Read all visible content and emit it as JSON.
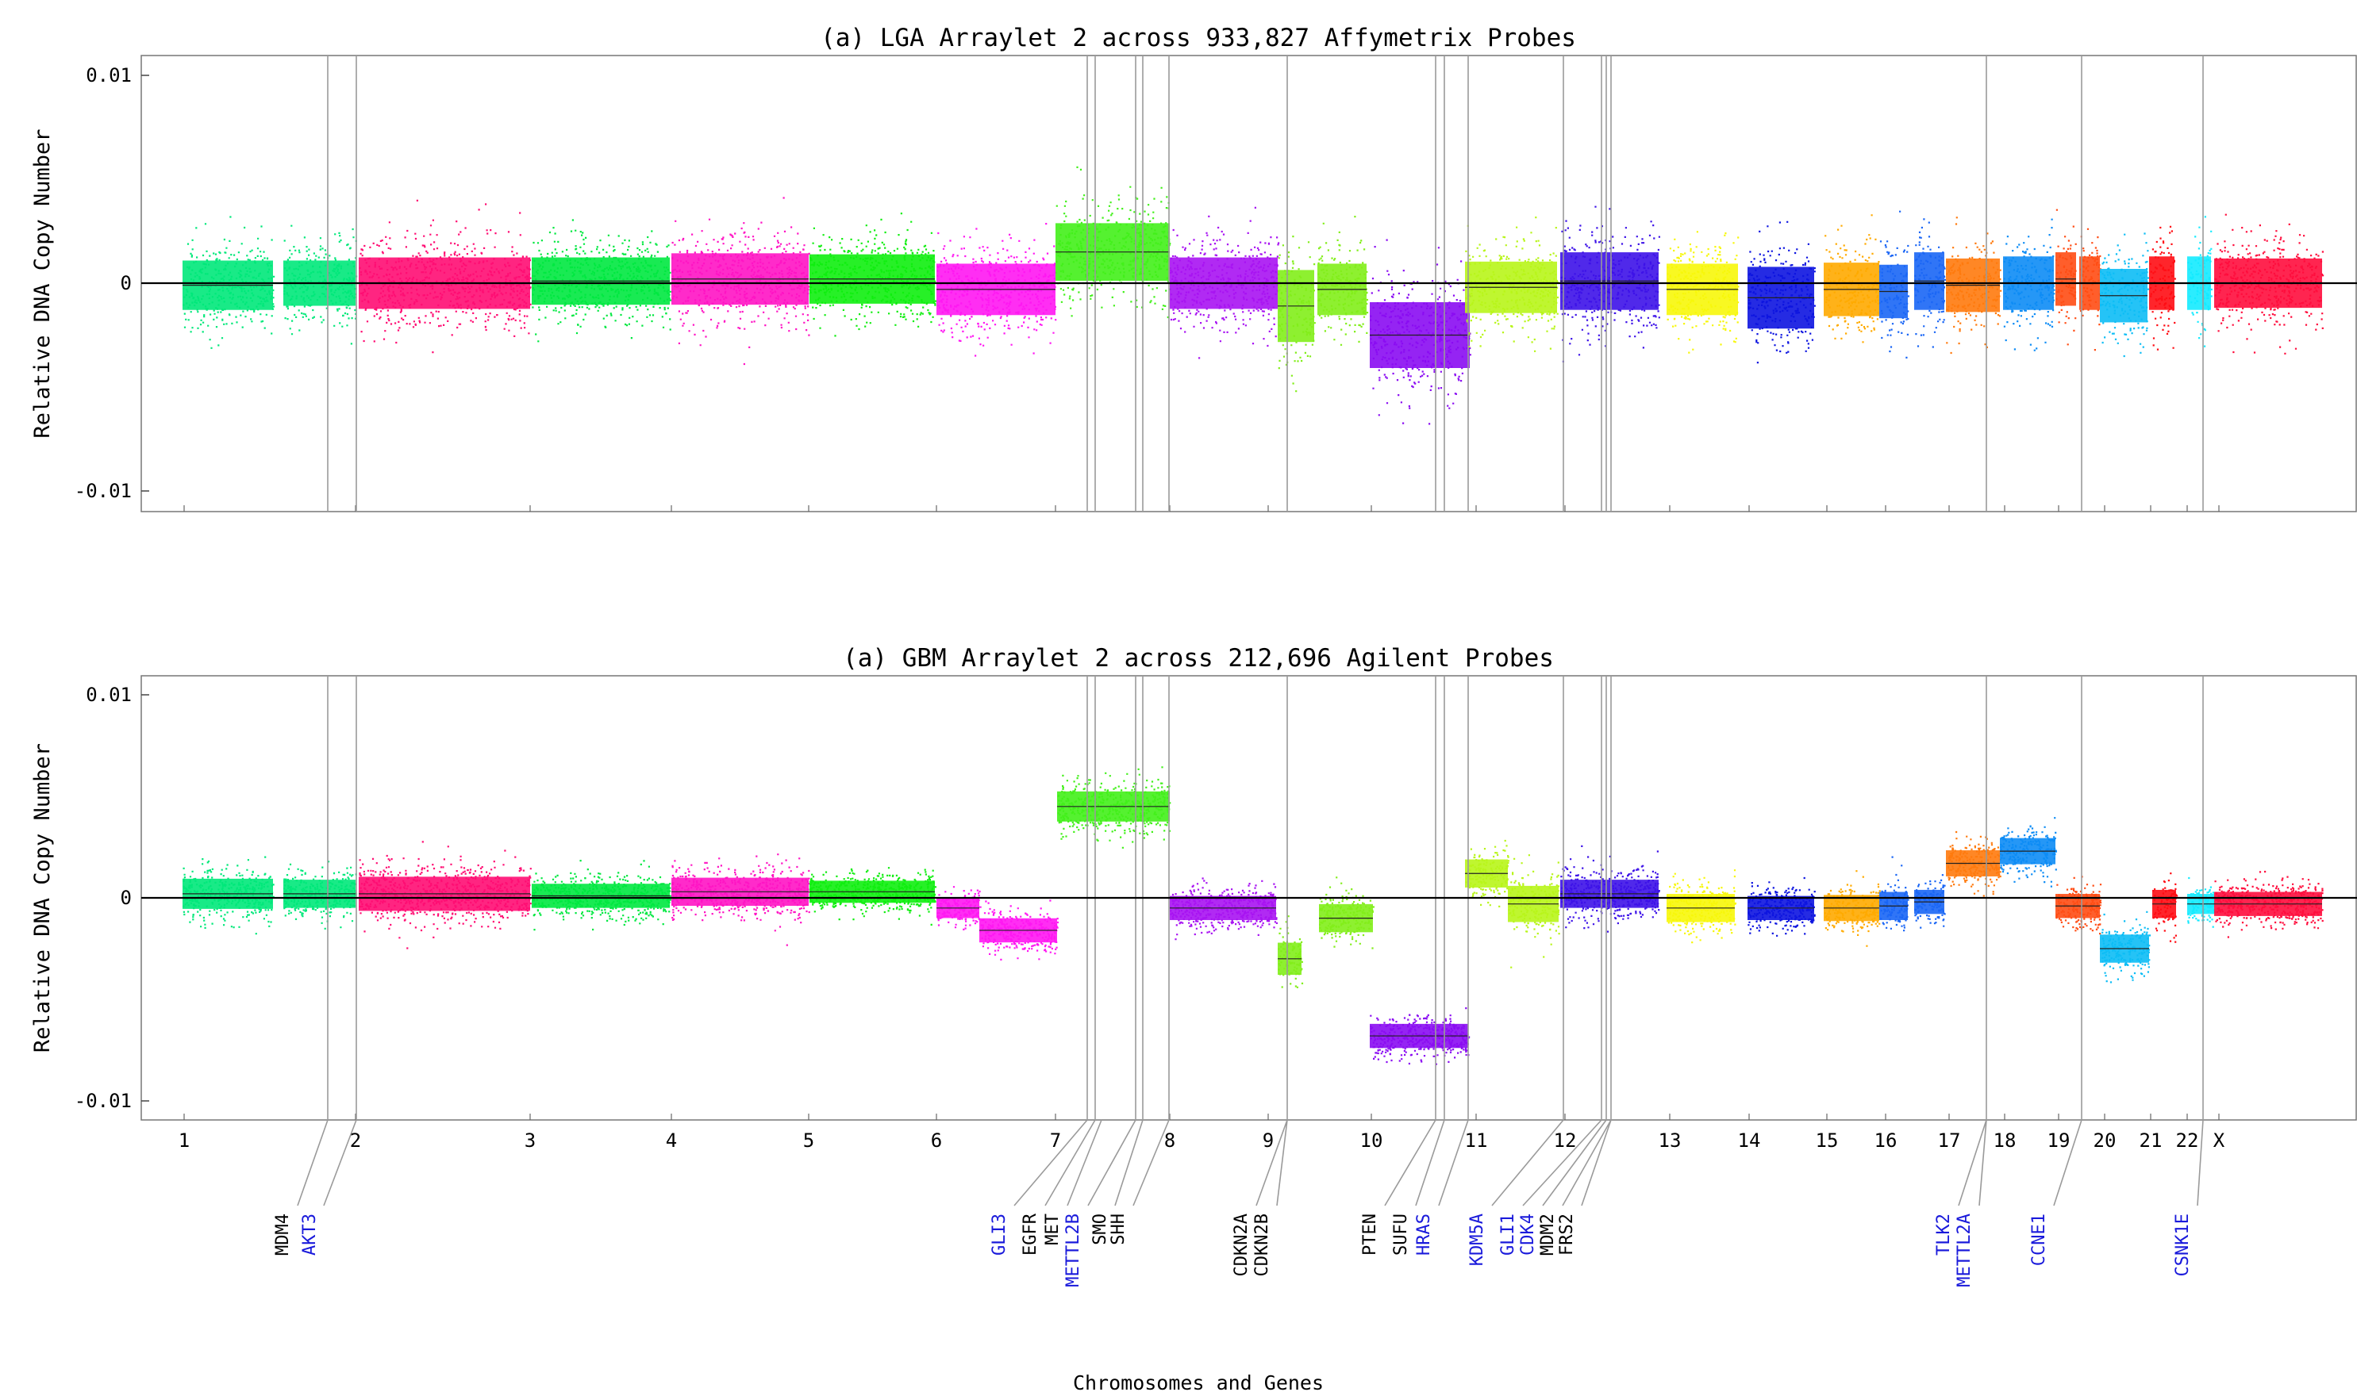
{
  "chart_data": {
    "type": "scatter",
    "xlabel": "Chromosomes and Genes",
    "chromosomes": [
      {
        "label": "1",
        "color": "#00e87a"
      },
      {
        "label": "2",
        "color": "#ff0d73"
      },
      {
        "label": "3",
        "color": "#00e840"
      },
      {
        "label": "4",
        "color": "#ff14c4"
      },
      {
        "label": "5",
        "color": "#10ee10"
      },
      {
        "label": "6",
        "color": "#ff17f2"
      },
      {
        "label": "7",
        "color": "#42f01a"
      },
      {
        "label": "8",
        "color": "#a813f2"
      },
      {
        "label": "9",
        "color": "#82ee1a"
      },
      {
        "label": "10",
        "color": "#8a0cf2"
      },
      {
        "label": "11",
        "color": "#b8f51a"
      },
      {
        "label": "12",
        "color": "#3d12e8"
      },
      {
        "label": "13",
        "color": "#f7f70a"
      },
      {
        "label": "14",
        "color": "#0d14e0"
      },
      {
        "label": "15",
        "color": "#ffaa00"
      },
      {
        "label": "16",
        "color": "#1a66f5"
      },
      {
        "label": "17",
        "color": "#ff7a0d"
      },
      {
        "label": "18",
        "color": "#0d8cf5"
      },
      {
        "label": "19",
        "color": "#ff4d14"
      },
      {
        "label": "20",
        "color": "#0dbdf5"
      },
      {
        "label": "21",
        "color": "#ff0d14"
      },
      {
        "label": "22",
        "color": "#14ebff"
      },
      {
        "label": "X",
        "color": "#ff0d3d"
      }
    ],
    "panels": [
      {
        "title": "(a) LGA Arraylet 2 across 933,827 Affymetrix Probes",
        "ylabel": "Relative DNA Copy Number",
        "ylim": [
          -0.011,
          0.011
        ],
        "yticks": [
          {
            "v": 0.01,
            "label": "0.01"
          },
          {
            "v": 0,
            "label": "0"
          },
          {
            "v": -0.01,
            "label": "-0.01"
          }
        ],
        "segment_means": [
          -0.0001,
          0.0,
          0.0,
          0.0001,
          0.0002,
          0.0002,
          -0.0003,
          0.0015,
          0.0,
          -0.0011,
          -0.0003,
          -0.0025,
          -0.0002,
          0.0001,
          -0.0003,
          -0.0007,
          -0.0003,
          -0.0004,
          0.0001,
          -0.0001,
          0.0,
          0.0002,
          0.0,
          -0.0006,
          0.0
        ]
      },
      {
        "title": "(a) GBM Arraylet 2 across 212,696 Agilent Probes",
        "ylabel": "Relative DNA Copy Number",
        "ylim": [
          -0.011,
          0.011
        ],
        "yticks": [
          {
            "v": 0.01,
            "label": "0.01"
          },
          {
            "v": 0,
            "label": "0"
          },
          {
            "v": -0.01,
            "label": "-0.01"
          }
        ],
        "segment_means": [
          0.0002,
          0.0002,
          0.0002,
          0.0001,
          0.0003,
          0.0003,
          -0.0005,
          -0.0016,
          0.0045,
          -0.0005,
          -0.003,
          -0.001,
          -0.0068,
          0.0012,
          -0.0003,
          0.0002,
          -0.0005,
          -0.0005,
          -0.0005,
          -0.0004,
          -0.0002,
          0.0017,
          0.0023,
          -0.0004,
          -0.0025,
          -0.0003
        ]
      }
    ],
    "genes": [
      {
        "name": "MDM4",
        "color": "#000000"
      },
      {
        "name": "AKT3",
        "color": "#1a1adb"
      },
      {
        "name": "GLI3",
        "color": "#1a1adb"
      },
      {
        "name": "EGFR",
        "color": "#000000"
      },
      {
        "name": "MET",
        "color": "#000000"
      },
      {
        "name": "METTL2B",
        "color": "#1a1adb"
      },
      {
        "name": "SMO",
        "color": "#000000"
      },
      {
        "name": "SHH",
        "color": "#000000"
      },
      {
        "name": "CDKN2A",
        "color": "#000000"
      },
      {
        "name": "CDKN2B",
        "color": "#000000"
      },
      {
        "name": "PTEN",
        "color": "#000000"
      },
      {
        "name": "SUFU",
        "color": "#000000"
      },
      {
        "name": "HRAS",
        "color": "#1a1adb"
      },
      {
        "name": "KDM5A",
        "color": "#1a1adb"
      },
      {
        "name": "GLI1",
        "color": "#1a1adb"
      },
      {
        "name": "CDK4",
        "color": "#1a1adb"
      },
      {
        "name": "MDM2",
        "color": "#000000"
      },
      {
        "name": "FRS2",
        "color": "#000000"
      },
      {
        "name": "TLK2",
        "color": "#1a1adb"
      },
      {
        "name": "METTL2A",
        "color": "#1a1adb"
      },
      {
        "name": "CCNE1",
        "color": "#1a1adb"
      },
      {
        "name": "CSNK1E",
        "color": "#1a1adb"
      }
    ]
  }
}
